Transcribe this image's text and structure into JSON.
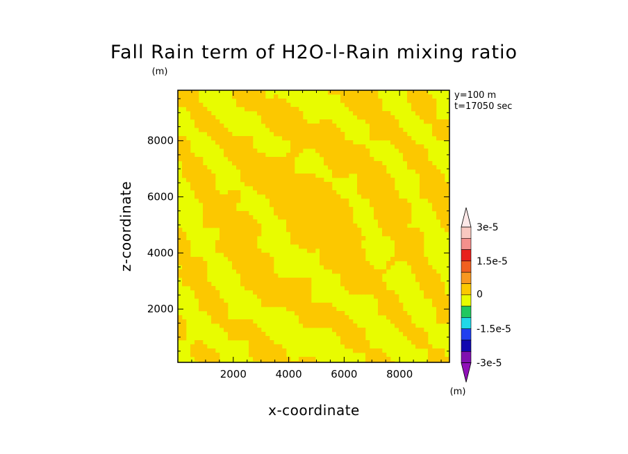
{
  "chart_data": {
    "type": "heatmap",
    "title": "Fall Rain term of H2O-l-Rain mixing ratio",
    "units_top": "(m)",
    "xlabel": "x-coordinate",
    "ylabel": "z-coordinate",
    "xlim": [
      0,
      9800
    ],
    "ylim": [
      100,
      9800
    ],
    "x_ticks": [
      "2000",
      "4000",
      "6000",
      "8000"
    ],
    "y_ticks": [
      "2000",
      "4000",
      "6000",
      "8000"
    ],
    "annotations": [
      "y=100 m",
      "t=17050 sec"
    ],
    "colorbar": {
      "units": "(m)",
      "tick_labels": [
        "3e-5",
        "1.5e-5",
        "0",
        "-1.5e-5",
        "-3e-5"
      ],
      "levels": [
        -3e-05,
        -2.5e-05,
        -2e-05,
        -1.5e-05,
        -1e-05,
        -5e-06,
        0,
        5e-06,
        1e-05,
        1.5e-05,
        2e-05,
        2.5e-05,
        3e-05
      ],
      "colors_top_to_bottom": [
        "#f8c8c0",
        "#f4908c",
        "#e8201c",
        "#f06020",
        "#f89820",
        "#fcc800",
        "#e8fc00",
        "#20c860",
        "#20d8e8",
        "#2040f0",
        "#1008b0",
        "#8010b0"
      ]
    },
    "field_description_colors": {
      "zero_to_plus": "#e8fc00",
      "small_positive": "#fcc800"
    }
  }
}
